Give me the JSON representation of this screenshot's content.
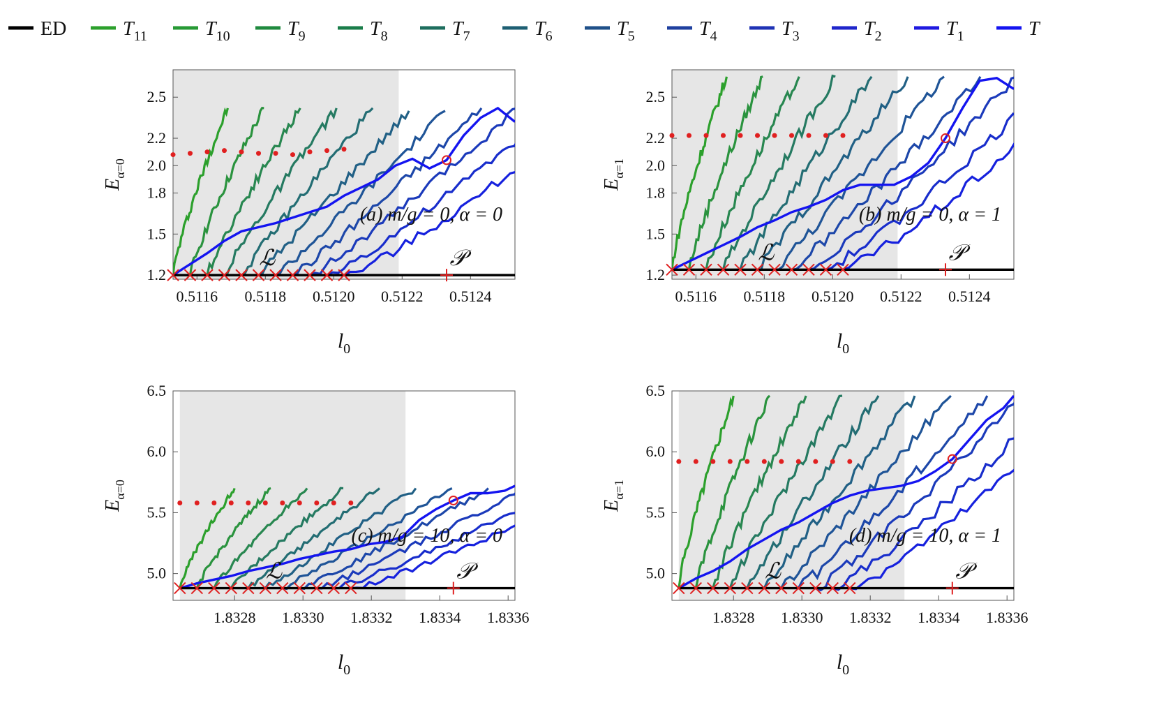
{
  "legend": [
    {
      "label": "ED",
      "sub": "",
      "color": "#000000"
    },
    {
      "label": "T",
      "sub": "11",
      "color": "#2ca02c"
    },
    {
      "label": "T",
      "sub": "10",
      "color": "#279a35"
    },
    {
      "label": "T",
      "sub": "9",
      "color": "#1f8a3e"
    },
    {
      "label": "T",
      "sub": "8",
      "color": "#1a7d4a"
    },
    {
      "label": "T",
      "sub": "7",
      "color": "#1e6e5e"
    },
    {
      "label": "T",
      "sub": "6",
      "color": "#1e5f73"
    },
    {
      "label": "T",
      "sub": "5",
      "color": "#1f5089"
    },
    {
      "label": "T",
      "sub": "4",
      "color": "#1f409f"
    },
    {
      "label": "T",
      "sub": "3",
      "color": "#1f33b5"
    },
    {
      "label": "T",
      "sub": "2",
      "color": "#1f26cb"
    },
    {
      "label": "T",
      "sub": "1",
      "color": "#1f1ae0"
    },
    {
      "label": "T",
      "sub": "",
      "color": "#1414f0"
    }
  ],
  "chart_data": [
    {
      "type": "line",
      "annotation": "(a) m/g = 0,  α = 0",
      "xlabel": "l0",
      "ylabel": "Eα=0",
      "xlim": [
        0.51153,
        0.51253
      ],
      "ylim": [
        1.17,
        2.7
      ],
      "xticks": [
        "0.5116",
        "0.5118",
        "0.5120",
        "0.5122",
        "0.5124"
      ],
      "xtick_values": [
        0.5116,
        0.5118,
        0.512,
        0.5122,
        0.5124
      ],
      "yticks": [
        "1.2",
        "1.5",
        "1.8",
        "2.0",
        "2.2",
        "2.5"
      ],
      "ytick_values": [
        1.2,
        1.5,
        1.8,
        2.0,
        2.2,
        2.5
      ],
      "shaded_region": [
        0.51153,
        0.51219
      ],
      "region_labels": {
        "L": "ℒ",
        "P": "𝒫"
      },
      "ed_line": {
        "x": [
          0.51153,
          0.51253
        ],
        "y": [
          1.2,
          1.2
        ]
      },
      "l_markers_x": [
        0.51153,
        0.51158,
        0.51163,
        0.51168,
        0.51173,
        0.51178,
        0.51183,
        0.51188,
        0.51193,
        0.51198,
        0.51203
      ],
      "p_marker_x": 0.51233,
      "dot_markers": {
        "x": [
          0.51153,
          0.51158,
          0.51163,
          0.51168,
          0.51173,
          0.51178,
          0.51183,
          0.51188,
          0.51193,
          0.51198,
          0.51203
        ],
        "y": [
          2.08,
          2.09,
          2.1,
          2.11,
          2.1,
          2.09,
          2.09,
          2.08,
          2.1,
          2.11,
          2.12
        ]
      },
      "circle_marker": {
        "x": 0.51233,
        "y": 2.04
      },
      "t_curve": {
        "x": [
          0.51153,
          0.51158,
          0.51163,
          0.51168,
          0.51173,
          0.51178,
          0.51183,
          0.51188,
          0.51193,
          0.51198,
          0.51203,
          0.51208,
          0.51213,
          0.51218,
          0.51223,
          0.51228,
          0.51233,
          0.51238,
          0.51243,
          0.51248,
          0.51253
        ],
        "y": [
          1.2,
          1.28,
          1.36,
          1.45,
          1.52,
          1.55,
          1.58,
          1.62,
          1.66,
          1.7,
          1.78,
          1.84,
          1.9,
          2.0,
          2.05,
          1.98,
          2.04,
          2.22,
          2.35,
          2.42,
          2.32
        ]
      },
      "series_count": 11,
      "series_x_start": [
        0.51153,
        0.51158,
        0.51163,
        0.51168,
        0.51173,
        0.51178,
        0.51183,
        0.51188,
        0.51193,
        0.51198,
        0.51203
      ],
      "series_len": 0.00016,
      "series_y_end": [
        2.42,
        2.42,
        2.42,
        2.42,
        2.42,
        2.4,
        2.4,
        2.42,
        2.42,
        2.42,
        2.4
      ]
    },
    {
      "type": "line",
      "annotation": "(b) m/g = 0,  α = 1",
      "xlabel": "l0",
      "ylabel": "Eα=1",
      "xlim": [
        0.51153,
        0.51253
      ],
      "ylim": [
        1.17,
        2.7
      ],
      "xticks": [
        "0.5116",
        "0.5118",
        "0.5120",
        "0.5122",
        "0.5124"
      ],
      "xtick_values": [
        0.5116,
        0.5118,
        0.512,
        0.5122,
        0.5124
      ],
      "yticks": [
        "1.2",
        "1.5",
        "1.8",
        "2.0",
        "2.2",
        "2.5"
      ],
      "ytick_values": [
        1.2,
        1.5,
        1.8,
        2.0,
        2.2,
        2.5
      ],
      "shaded_region": [
        0.51153,
        0.51219
      ],
      "region_labels": {
        "L": "ℒ",
        "P": "𝒫"
      },
      "ed_line": {
        "x": [
          0.51153,
          0.51253
        ],
        "y": [
          1.24,
          1.24
        ]
      },
      "l_markers_x": [
        0.51153,
        0.51158,
        0.51163,
        0.51168,
        0.51173,
        0.51178,
        0.51183,
        0.51188,
        0.51193,
        0.51198,
        0.51203
      ],
      "p_marker_x": 0.51233,
      "dot_markers": {
        "x": [
          0.51153,
          0.51158,
          0.51163,
          0.51168,
          0.51173,
          0.51178,
          0.51183,
          0.51188,
          0.51193,
          0.51198,
          0.51203
        ],
        "y": [
          2.22,
          2.22,
          2.22,
          2.22,
          2.22,
          2.22,
          2.22,
          2.22,
          2.22,
          2.22,
          2.22
        ]
      },
      "circle_marker": {
        "x": 0.51233,
        "y": 2.2
      },
      "t_curve": {
        "x": [
          0.51153,
          0.51158,
          0.51163,
          0.51168,
          0.51173,
          0.51178,
          0.51183,
          0.51188,
          0.51193,
          0.51198,
          0.51203,
          0.51208,
          0.51213,
          0.51218,
          0.51223,
          0.51228,
          0.51233,
          0.51238,
          0.51243,
          0.51248,
          0.51253
        ],
        "y": [
          1.24,
          1.3,
          1.36,
          1.42,
          1.48,
          1.55,
          1.6,
          1.66,
          1.7,
          1.75,
          1.82,
          1.86,
          1.86,
          1.86,
          1.92,
          2.02,
          2.2,
          2.42,
          2.62,
          2.64,
          2.56
        ]
      },
      "series_count": 11,
      "series_x_start": [
        0.51153,
        0.51158,
        0.51163,
        0.51168,
        0.51173,
        0.51178,
        0.51183,
        0.51188,
        0.51193,
        0.51198,
        0.51203
      ],
      "series_len": 0.00016,
      "series_y_end": [
        2.65,
        2.65,
        2.65,
        2.65,
        2.65,
        2.65,
        2.65,
        2.65,
        2.65,
        2.62,
        2.62
      ]
    },
    {
      "type": "line",
      "annotation": "(c) m/g = 10,  α = 0",
      "xlabel": "l0",
      "ylabel": "Eα=0",
      "xlim": [
        1.83262,
        1.83362
      ],
      "ylim": [
        4.78,
        6.5
      ],
      "xticks": [
        "1.8328",
        "1.8330",
        "1.8332",
        "1.8334",
        "1.8336"
      ],
      "xtick_values": [
        1.8328,
        1.833,
        1.8332,
        1.8334,
        1.8336
      ],
      "yticks": [
        "5.0",
        "5.5",
        "6.0",
        "6.5"
      ],
      "ytick_values": [
        5.0,
        5.5,
        6.0,
        6.5
      ],
      "shaded_region": [
        1.83264,
        1.8333
      ],
      "region_labels": {
        "L": "ℒ",
        "P": "𝒫"
      },
      "ed_line": {
        "x": [
          1.83264,
          1.83362
        ],
        "y": [
          4.88,
          4.88
        ]
      },
      "l_markers_x": [
        1.83264,
        1.83269,
        1.83274,
        1.83279,
        1.83284,
        1.83289,
        1.83294,
        1.83299,
        1.83304,
        1.83309,
        1.83314
      ],
      "p_marker_x": 1.83344,
      "dot_markers": {
        "x": [
          1.83264,
          1.83269,
          1.83274,
          1.83279,
          1.83284,
          1.83289,
          1.83294,
          1.83299,
          1.83304,
          1.83309,
          1.83314
        ],
        "y": [
          5.58,
          5.58,
          5.58,
          5.58,
          5.58,
          5.58,
          5.58,
          5.58,
          5.58,
          5.58,
          5.58
        ]
      },
      "circle_marker": {
        "x": 1.83344,
        "y": 5.6
      },
      "t_curve": {
        "x": [
          1.83264,
          1.83269,
          1.83274,
          1.83279,
          1.83284,
          1.83289,
          1.83294,
          1.83299,
          1.83304,
          1.83309,
          1.83314,
          1.83319,
          1.83324,
          1.83329,
          1.83334,
          1.83339,
          1.83344,
          1.83349,
          1.83354,
          1.83359,
          1.83362
        ],
        "y": [
          4.88,
          4.92,
          4.95,
          4.98,
          5.02,
          5.05,
          5.08,
          5.12,
          5.15,
          5.18,
          5.2,
          5.24,
          5.26,
          5.3,
          5.44,
          5.53,
          5.6,
          5.66,
          5.66,
          5.68,
          5.72
        ]
      },
      "series_count": 11,
      "series_x_start": [
        1.83264,
        1.83269,
        1.83274,
        1.83279,
        1.83284,
        1.83289,
        1.83294,
        1.83299,
        1.83304,
        1.83309,
        1.83314
      ],
      "series_len": 0.00016,
      "series_y_end": [
        5.7,
        5.7,
        5.7,
        5.7,
        5.7,
        5.7,
        5.7,
        5.7,
        5.7,
        5.7,
        5.72
      ]
    },
    {
      "type": "line",
      "annotation": "(d) m/g = 10,  α = 1",
      "xlabel": "l0",
      "ylabel": "Eα=1",
      "xlim": [
        1.83262,
        1.83362
      ],
      "ylim": [
        4.78,
        6.5
      ],
      "xticks": [
        "1.8328",
        "1.8330",
        "1.8332",
        "1.8334",
        "1.8336"
      ],
      "xtick_values": [
        1.8328,
        1.833,
        1.8332,
        1.8334,
        1.8336
      ],
      "yticks": [
        "5.0",
        "5.5",
        "6.0",
        "6.5"
      ],
      "ytick_values": [
        5.0,
        5.5,
        6.0,
        6.5
      ],
      "shaded_region": [
        1.83264,
        1.8333
      ],
      "region_labels": {
        "L": "ℒ",
        "P": "𝒫"
      },
      "ed_line": {
        "x": [
          1.83264,
          1.83362
        ],
        "y": [
          4.88,
          4.88
        ]
      },
      "l_markers_x": [
        1.83264,
        1.83269,
        1.83274,
        1.83279,
        1.83284,
        1.83289,
        1.83294,
        1.83299,
        1.83304,
        1.83309,
        1.83314
      ],
      "p_marker_x": 1.83344,
      "dot_markers": {
        "x": [
          1.83264,
          1.83269,
          1.83274,
          1.83279,
          1.83284,
          1.83289,
          1.83294,
          1.83299,
          1.83304,
          1.83309,
          1.83314
        ],
        "y": [
          5.92,
          5.92,
          5.92,
          5.92,
          5.92,
          5.92,
          5.92,
          5.92,
          5.92,
          5.92,
          5.92
        ]
      },
      "circle_marker": {
        "x": 1.83344,
        "y": 5.94
      },
      "t_curve": {
        "x": [
          1.83264,
          1.83269,
          1.83274,
          1.83279,
          1.83284,
          1.83289,
          1.83294,
          1.83299,
          1.83304,
          1.83309,
          1.83314,
          1.83319,
          1.83324,
          1.83329,
          1.83334,
          1.83339,
          1.83344,
          1.83349,
          1.83354,
          1.83359,
          1.83362
        ],
        "y": [
          4.88,
          4.96,
          5.02,
          5.1,
          5.2,
          5.28,
          5.36,
          5.42,
          5.5,
          5.58,
          5.64,
          5.68,
          5.7,
          5.72,
          5.76,
          5.84,
          5.94,
          6.1,
          6.26,
          6.36,
          6.46
        ]
      },
      "series_count": 11,
      "series_x_start": [
        1.83264,
        1.83269,
        1.83274,
        1.83279,
        1.83284,
        1.83289,
        1.83294,
        1.83299,
        1.83304,
        1.83309,
        1.83314
      ],
      "series_len": 0.00016,
      "series_y_end": [
        6.46,
        6.46,
        6.46,
        6.46,
        6.46,
        6.46,
        6.46,
        6.46,
        6.46,
        6.46,
        6.46
      ]
    }
  ]
}
